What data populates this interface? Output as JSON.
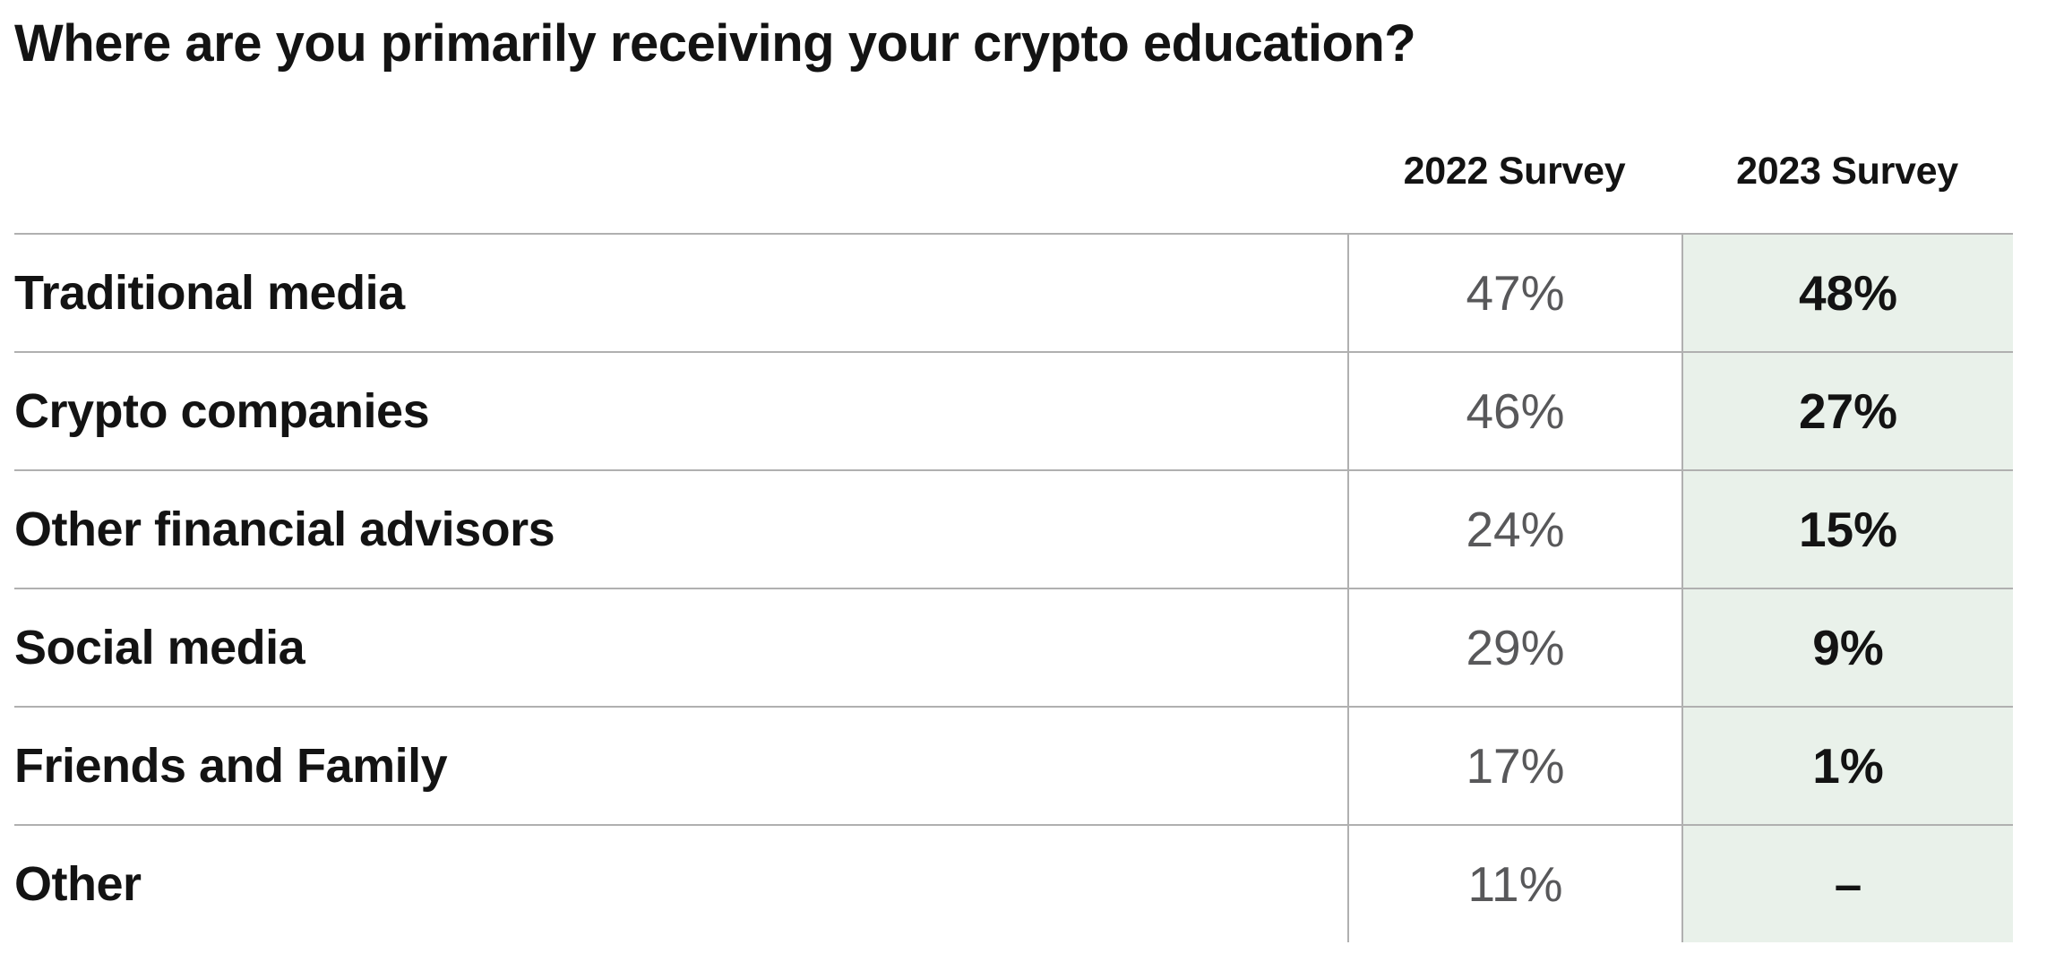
{
  "title": "Where are you primarily receiving your crypto education?",
  "table": {
    "columns": [
      "2022 Survey",
      "2023 Survey"
    ],
    "rows": [
      {
        "label": "Traditional media",
        "y2022": "47%",
        "y2023": "48%"
      },
      {
        "label": "Crypto companies",
        "y2022": "46%",
        "y2023": "27%"
      },
      {
        "label": "Other financial advisors",
        "y2022": "24%",
        "y2023": "15%"
      },
      {
        "label": "Social media",
        "y2022": "29%",
        "y2023": "9%"
      },
      {
        "label": "Friends and Family",
        "y2022": "17%",
        "y2023": "1%"
      },
      {
        "label": "Other",
        "y2022": "11%",
        "y2023": "–"
      }
    ],
    "colors": {
      "highlight_column_background": "#e9f1ea",
      "border": "#b0b0b0",
      "muted_value_text": "#58585a",
      "primary_text": "#131313"
    }
  },
  "chart_data": {
    "type": "table",
    "title": "Where are you primarily receiving your crypto education?",
    "categories": [
      "Traditional media",
      "Crypto companies",
      "Other financial advisors",
      "Social media",
      "Friends and Family",
      "Other"
    ],
    "series": [
      {
        "name": "2022 Survey",
        "values": [
          47,
          46,
          24,
          29,
          17,
          11
        ]
      },
      {
        "name": "2023 Survey",
        "values": [
          48,
          27,
          15,
          9,
          1,
          null
        ]
      }
    ],
    "value_unit": "%",
    "notes": "2023 Survey value for Other shown as dash (no data); 2023 column highlighted in light green with bold values; 2022 values shown in gray."
  }
}
